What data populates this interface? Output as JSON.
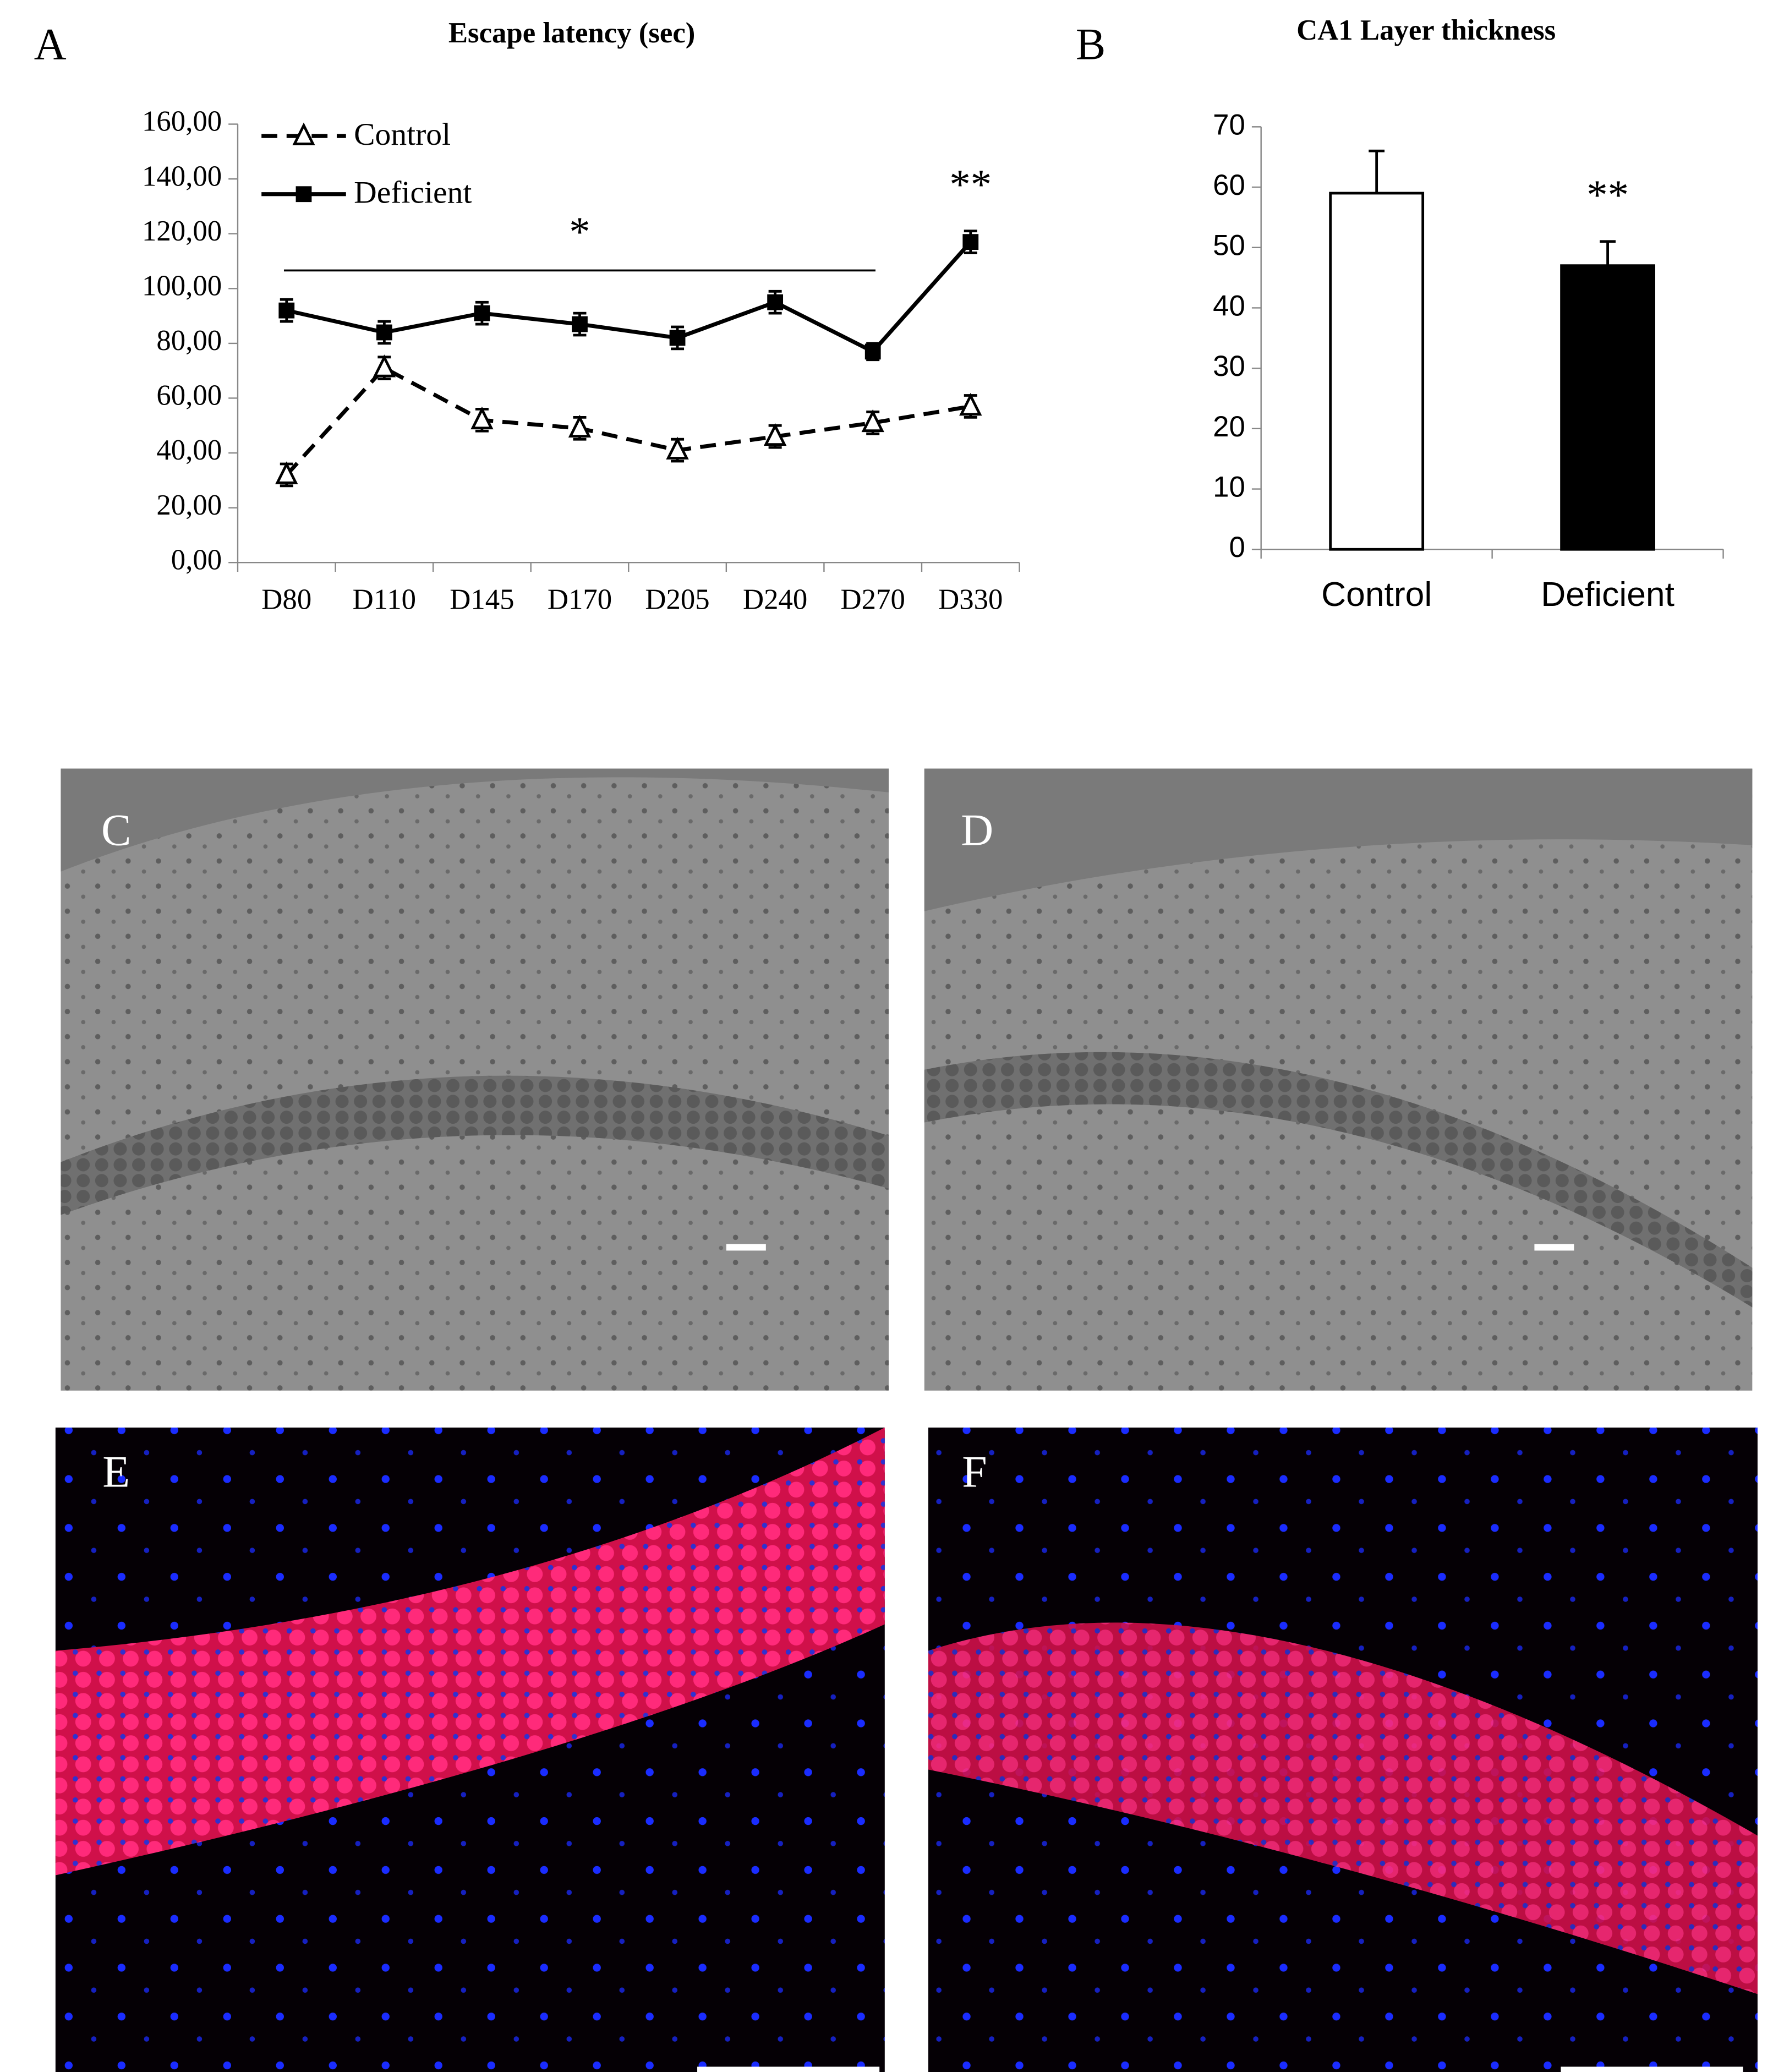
{
  "chart_data": [
    {
      "type": "line",
      "panel": "A",
      "title": "Escape latency (sec)",
      "categories": [
        "D80",
        "D110",
        "D145",
        "D170",
        "D205",
        "D240",
        "D270",
        "D330"
      ],
      "series": [
        {
          "name": "Control",
          "color": "#000000",
          "marker": "triangle",
          "dashed": true,
          "values": [
            32,
            71,
            52,
            49,
            41,
            46,
            51,
            57
          ],
          "errors": [
            4,
            4,
            4,
            4,
            4,
            4,
            4,
            4
          ]
        },
        {
          "name": "Deficient",
          "color": "#000000",
          "marker": "square",
          "dashed": false,
          "values": [
            92,
            84,
            91,
            87,
            82,
            95,
            77,
            117
          ],
          "errors": [
            4,
            4,
            4,
            4,
            4,
            4,
            3,
            4
          ]
        }
      ],
      "ylim": [
        0,
        160
      ],
      "yticks": [
        {
          "value": 0,
          "label": "0,00"
        },
        {
          "value": 20,
          "label": "20,00"
        },
        {
          "value": 40,
          "label": "40,00"
        },
        {
          "value": 60,
          "label": "60,00"
        },
        {
          "value": 80,
          "label": "80,00"
        },
        {
          "value": 100,
          "label": "100,00"
        },
        {
          "value": 120,
          "label": "120,00"
        },
        {
          "value": 140,
          "label": "140,00"
        },
        {
          "value": 160,
          "label": "160,00"
        }
      ],
      "legend": "top-left",
      "annotations": [
        {
          "text": "*",
          "categories": [
            "D80",
            "D270"
          ]
        },
        {
          "text": "**",
          "categories": [
            "D330"
          ]
        }
      ]
    },
    {
      "type": "bar",
      "panel": "B",
      "title": "CA1 Layer thickness",
      "categories": [
        "Control",
        "Deficient"
      ],
      "values": [
        59,
        47
      ],
      "errors": [
        7,
        4
      ],
      "colors": [
        "#ffffff",
        "#000000"
      ],
      "ylim": [
        0,
        70
      ],
      "yticks": [
        0,
        10,
        20,
        30,
        40,
        50,
        60,
        70
      ],
      "annotations": [
        {
          "text": "**",
          "categories": [
            "Deficient"
          ]
        }
      ]
    }
  ],
  "images": [
    {
      "label": "C"
    },
    {
      "label": "D"
    },
    {
      "label": "E"
    },
    {
      "label": "F"
    }
  ]
}
